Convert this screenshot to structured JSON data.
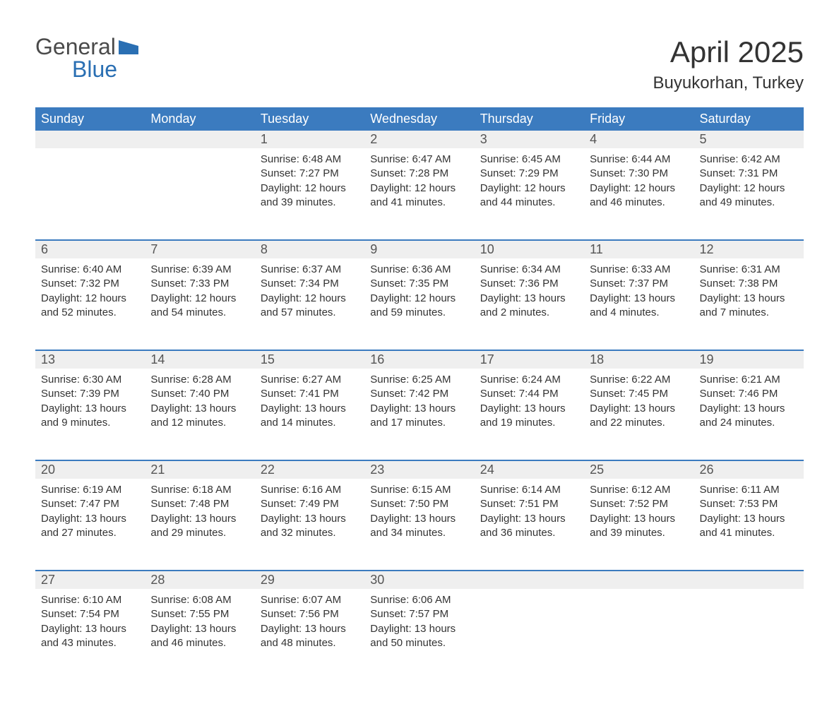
{
  "brand": {
    "line1": "General",
    "line2": "Blue",
    "flag_color": "#2a6fb3"
  },
  "title": "April 2025",
  "location": "Buyukorhan, Turkey",
  "colors": {
    "header_bg": "#3b7bbf",
    "header_text": "#ffffff",
    "daynum_bg": "#efefef",
    "row_divider": "#3b7bbf",
    "text": "#333333",
    "background": "#ffffff"
  },
  "day_headers": [
    "Sunday",
    "Monday",
    "Tuesday",
    "Wednesday",
    "Thursday",
    "Friday",
    "Saturday"
  ],
  "weeks": [
    [
      {
        "day": "",
        "sunrise": "",
        "sunset": "",
        "daylight": ""
      },
      {
        "day": "",
        "sunrise": "",
        "sunset": "",
        "daylight": ""
      },
      {
        "day": "1",
        "sunrise": "Sunrise: 6:48 AM",
        "sunset": "Sunset: 7:27 PM",
        "daylight": "Daylight: 12 hours and 39 minutes."
      },
      {
        "day": "2",
        "sunrise": "Sunrise: 6:47 AM",
        "sunset": "Sunset: 7:28 PM",
        "daylight": "Daylight: 12 hours and 41 minutes."
      },
      {
        "day": "3",
        "sunrise": "Sunrise: 6:45 AM",
        "sunset": "Sunset: 7:29 PM",
        "daylight": "Daylight: 12 hours and 44 minutes."
      },
      {
        "day": "4",
        "sunrise": "Sunrise: 6:44 AM",
        "sunset": "Sunset: 7:30 PM",
        "daylight": "Daylight: 12 hours and 46 minutes."
      },
      {
        "day": "5",
        "sunrise": "Sunrise: 6:42 AM",
        "sunset": "Sunset: 7:31 PM",
        "daylight": "Daylight: 12 hours and 49 minutes."
      }
    ],
    [
      {
        "day": "6",
        "sunrise": "Sunrise: 6:40 AM",
        "sunset": "Sunset: 7:32 PM",
        "daylight": "Daylight: 12 hours and 52 minutes."
      },
      {
        "day": "7",
        "sunrise": "Sunrise: 6:39 AM",
        "sunset": "Sunset: 7:33 PM",
        "daylight": "Daylight: 12 hours and 54 minutes."
      },
      {
        "day": "8",
        "sunrise": "Sunrise: 6:37 AM",
        "sunset": "Sunset: 7:34 PM",
        "daylight": "Daylight: 12 hours and 57 minutes."
      },
      {
        "day": "9",
        "sunrise": "Sunrise: 6:36 AM",
        "sunset": "Sunset: 7:35 PM",
        "daylight": "Daylight: 12 hours and 59 minutes."
      },
      {
        "day": "10",
        "sunrise": "Sunrise: 6:34 AM",
        "sunset": "Sunset: 7:36 PM",
        "daylight": "Daylight: 13 hours and 2 minutes."
      },
      {
        "day": "11",
        "sunrise": "Sunrise: 6:33 AM",
        "sunset": "Sunset: 7:37 PM",
        "daylight": "Daylight: 13 hours and 4 minutes."
      },
      {
        "day": "12",
        "sunrise": "Sunrise: 6:31 AM",
        "sunset": "Sunset: 7:38 PM",
        "daylight": "Daylight: 13 hours and 7 minutes."
      }
    ],
    [
      {
        "day": "13",
        "sunrise": "Sunrise: 6:30 AM",
        "sunset": "Sunset: 7:39 PM",
        "daylight": "Daylight: 13 hours and 9 minutes."
      },
      {
        "day": "14",
        "sunrise": "Sunrise: 6:28 AM",
        "sunset": "Sunset: 7:40 PM",
        "daylight": "Daylight: 13 hours and 12 minutes."
      },
      {
        "day": "15",
        "sunrise": "Sunrise: 6:27 AM",
        "sunset": "Sunset: 7:41 PM",
        "daylight": "Daylight: 13 hours and 14 minutes."
      },
      {
        "day": "16",
        "sunrise": "Sunrise: 6:25 AM",
        "sunset": "Sunset: 7:42 PM",
        "daylight": "Daylight: 13 hours and 17 minutes."
      },
      {
        "day": "17",
        "sunrise": "Sunrise: 6:24 AM",
        "sunset": "Sunset: 7:44 PM",
        "daylight": "Daylight: 13 hours and 19 minutes."
      },
      {
        "day": "18",
        "sunrise": "Sunrise: 6:22 AM",
        "sunset": "Sunset: 7:45 PM",
        "daylight": "Daylight: 13 hours and 22 minutes."
      },
      {
        "day": "19",
        "sunrise": "Sunrise: 6:21 AM",
        "sunset": "Sunset: 7:46 PM",
        "daylight": "Daylight: 13 hours and 24 minutes."
      }
    ],
    [
      {
        "day": "20",
        "sunrise": "Sunrise: 6:19 AM",
        "sunset": "Sunset: 7:47 PM",
        "daylight": "Daylight: 13 hours and 27 minutes."
      },
      {
        "day": "21",
        "sunrise": "Sunrise: 6:18 AM",
        "sunset": "Sunset: 7:48 PM",
        "daylight": "Daylight: 13 hours and 29 minutes."
      },
      {
        "day": "22",
        "sunrise": "Sunrise: 6:16 AM",
        "sunset": "Sunset: 7:49 PM",
        "daylight": "Daylight: 13 hours and 32 minutes."
      },
      {
        "day": "23",
        "sunrise": "Sunrise: 6:15 AM",
        "sunset": "Sunset: 7:50 PM",
        "daylight": "Daylight: 13 hours and 34 minutes."
      },
      {
        "day": "24",
        "sunrise": "Sunrise: 6:14 AM",
        "sunset": "Sunset: 7:51 PM",
        "daylight": "Daylight: 13 hours and 36 minutes."
      },
      {
        "day": "25",
        "sunrise": "Sunrise: 6:12 AM",
        "sunset": "Sunset: 7:52 PM",
        "daylight": "Daylight: 13 hours and 39 minutes."
      },
      {
        "day": "26",
        "sunrise": "Sunrise: 6:11 AM",
        "sunset": "Sunset: 7:53 PM",
        "daylight": "Daylight: 13 hours and 41 minutes."
      }
    ],
    [
      {
        "day": "27",
        "sunrise": "Sunrise: 6:10 AM",
        "sunset": "Sunset: 7:54 PM",
        "daylight": "Daylight: 13 hours and 43 minutes."
      },
      {
        "day": "28",
        "sunrise": "Sunrise: 6:08 AM",
        "sunset": "Sunset: 7:55 PM",
        "daylight": "Daylight: 13 hours and 46 minutes."
      },
      {
        "day": "29",
        "sunrise": "Sunrise: 6:07 AM",
        "sunset": "Sunset: 7:56 PM",
        "daylight": "Daylight: 13 hours and 48 minutes."
      },
      {
        "day": "30",
        "sunrise": "Sunrise: 6:06 AM",
        "sunset": "Sunset: 7:57 PM",
        "daylight": "Daylight: 13 hours and 50 minutes."
      },
      {
        "day": "",
        "sunrise": "",
        "sunset": "",
        "daylight": ""
      },
      {
        "day": "",
        "sunrise": "",
        "sunset": "",
        "daylight": ""
      },
      {
        "day": "",
        "sunrise": "",
        "sunset": "",
        "daylight": ""
      }
    ]
  ]
}
